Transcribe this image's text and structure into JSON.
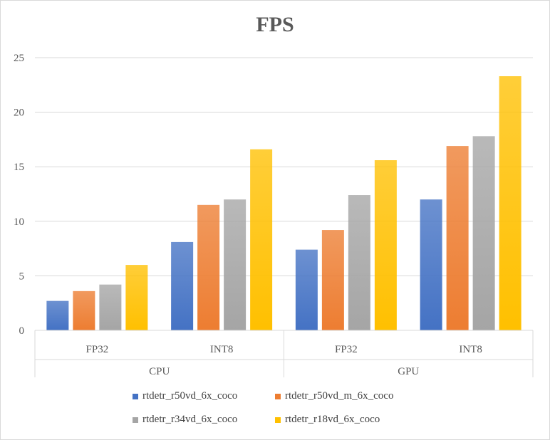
{
  "chart_data": {
    "type": "bar",
    "title": "FPS",
    "xlabel": "",
    "ylabel": "",
    "ylim": [
      0,
      25
    ],
    "yticks": [
      0,
      5,
      10,
      15,
      20,
      25
    ],
    "grid": true,
    "legend_position": "bottom",
    "groups": [
      {
        "label": "CPU",
        "categories": [
          "FP32",
          "INT8"
        ]
      },
      {
        "label": "GPU",
        "categories": [
          "FP32",
          "INT8"
        ]
      }
    ],
    "categories": [
      "FP32",
      "INT8",
      "FP32",
      "INT8"
    ],
    "series": [
      {
        "name": "rtdetr_r50vd_6x_coco",
        "color": "#4472c4",
        "values": [
          2.7,
          8.1,
          7.4,
          12.0
        ]
      },
      {
        "name": "rtdetr_r50vd_m_6x_coco",
        "color": "#ed7d31",
        "values": [
          3.6,
          11.5,
          9.2,
          16.9
        ]
      },
      {
        "name": "rtdetr_r34vd_6x_coco",
        "color": "#a5a5a5",
        "values": [
          4.2,
          12.0,
          12.4,
          17.8
        ]
      },
      {
        "name": "rtdetr_r18vd_6x_coco",
        "color": "#ffc000",
        "values": [
          6.0,
          16.6,
          15.6,
          23.3
        ]
      }
    ]
  }
}
